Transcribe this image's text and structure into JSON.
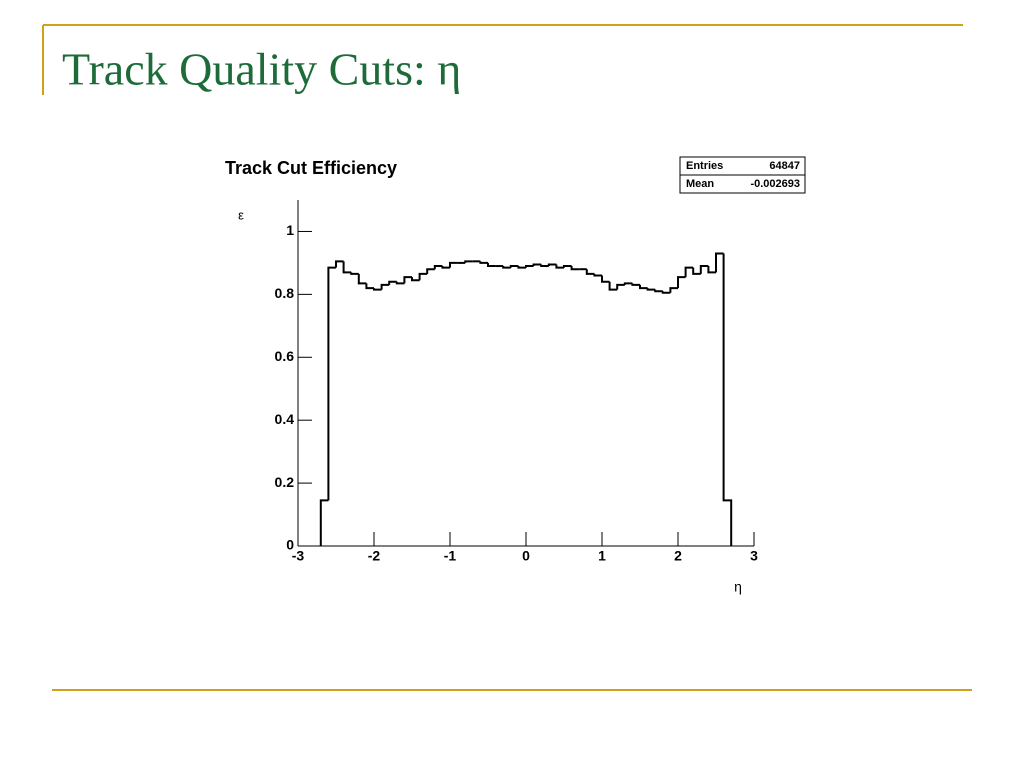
{
  "slide": {
    "title": "Track Quality Cuts: η"
  },
  "chart_data": {
    "type": "histogram",
    "title": "Track Cut Efficiency",
    "xlabel": "η",
    "ylabel": "ε",
    "stats": {
      "entries_label": "Entries",
      "entries": 64847,
      "mean_label": "Mean",
      "mean": -0.002693
    },
    "bins": [
      -2.7,
      -2.6,
      -2.5,
      -2.4,
      -2.3,
      -2.2,
      -2.1,
      -2.0,
      -1.9,
      -1.8,
      -1.7,
      -1.6,
      -1.5,
      -1.4,
      -1.3,
      -1.2,
      -1.1,
      -1.0,
      -0.9,
      -0.8,
      -0.7,
      -0.6,
      -0.5,
      -0.4,
      -0.3,
      -0.2,
      -0.1,
      0,
      0.1,
      0.2,
      0.3,
      0.4,
      0.5,
      0.6,
      0.7,
      0.8,
      0.9,
      1.0,
      1.1,
      1.2,
      1.3,
      1.4,
      1.5,
      1.6,
      1.7,
      1.8,
      1.9,
      2.0,
      2.1,
      2.2,
      2.3,
      2.4,
      2.5,
      2.6,
      2.7
    ],
    "values": [
      0.145,
      0.885,
      0.905,
      0.87,
      0.865,
      0.835,
      0.82,
      0.815,
      0.83,
      0.84,
      0.835,
      0.855,
      0.845,
      0.865,
      0.88,
      0.89,
      0.885,
      0.9,
      0.9,
      0.905,
      0.905,
      0.9,
      0.89,
      0.89,
      0.885,
      0.89,
      0.885,
      0.89,
      0.895,
      0.89,
      0.895,
      0.885,
      0.89,
      0.88,
      0.88,
      0.865,
      0.86,
      0.84,
      0.815,
      0.83,
      0.835,
      0.83,
      0.82,
      0.815,
      0.81,
      0.805,
      0.82,
      0.855,
      0.885,
      0.865,
      0.89,
      0.87,
      0.93,
      0.145
    ],
    "color": "#000000",
    "xlim": [
      -3,
      3
    ],
    "ylim": [
      0,
      1.1
    ],
    "xticks": [
      -3,
      -2,
      -1,
      0,
      1,
      2,
      3
    ],
    "yticks": [
      0,
      0.2,
      0.4,
      0.6,
      0.8,
      1
    ]
  }
}
